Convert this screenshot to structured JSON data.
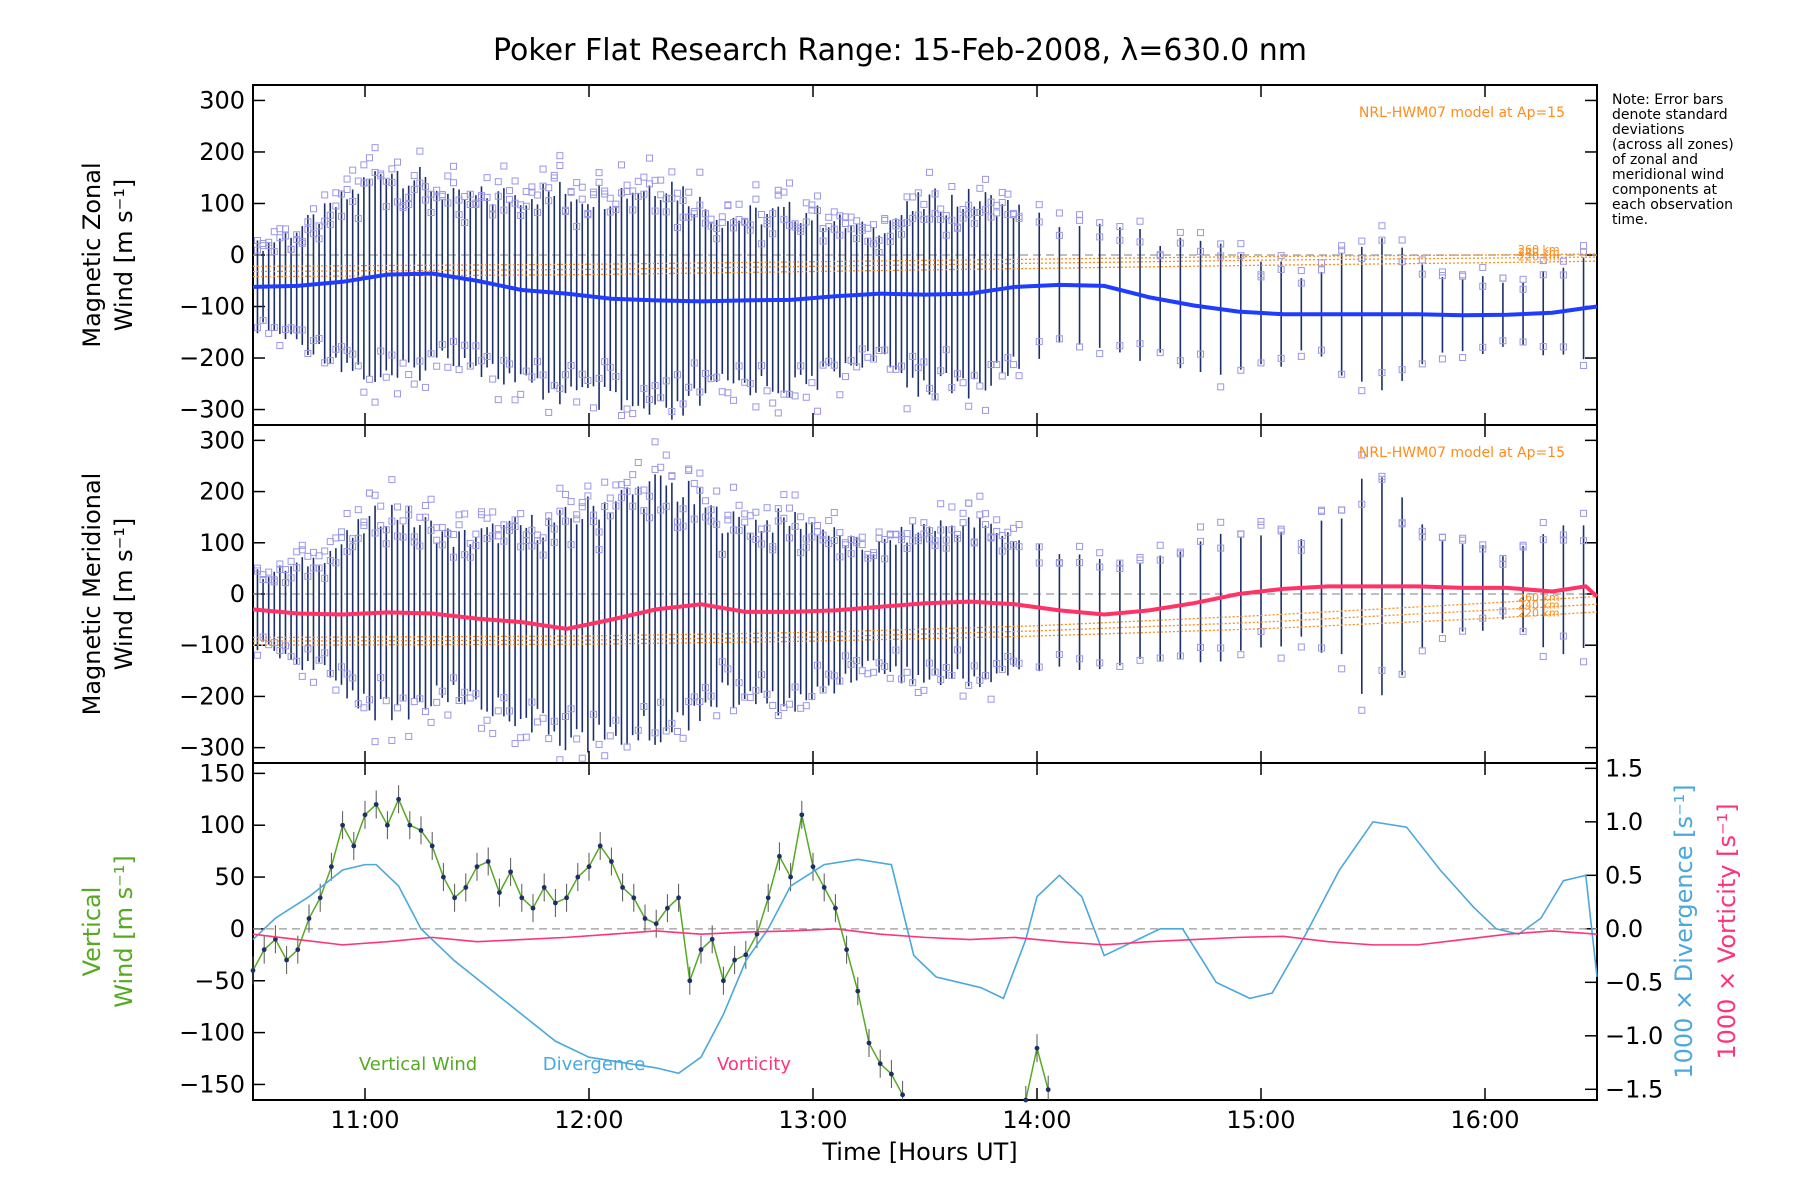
{
  "title": "Poker Flat Research Range: 15-Feb-2008, λ=630.0 nm",
  "note_lines": [
    "Note: Error bars",
    "denote standard",
    "deviations",
    "(across all zones)",
    "of zonal and",
    "meridional wind",
    "components at",
    "each observation",
    "time."
  ],
  "x_axis": {
    "label": "Time [Hours UT]",
    "range": [
      10.5,
      16.5
    ],
    "ticks": [
      11,
      12,
      13,
      14,
      15,
      16
    ],
    "tick_labels": [
      "11:00",
      "12:00",
      "13:00",
      "14:00",
      "15:00",
      "16:00"
    ]
  },
  "colors": {
    "zonal_mean": "#1f3cff",
    "zonal_mean_early": "#4aa8e6",
    "meridional_mean": "#ff3366",
    "model": "#ff8c1a",
    "scatter": "#9b97e8",
    "errorbar": "#1c2f6b",
    "vertical": "#55aa22",
    "divergence": "#4aa8dd",
    "vorticity": "#ff3377"
  },
  "chart_data": [
    {
      "type": "scatter",
      "panel": "zonal",
      "ylabel_line1": "Magnetic Zonal",
      "ylabel_line2": "Wind",
      "ylabel_units": "[m s⁻¹]",
      "ylim": [
        -330,
        330
      ],
      "yticks": [
        -300,
        -200,
        -100,
        0,
        100,
        200,
        300
      ],
      "model_label": "NRL-HWM07 model at Ap=15",
      "altitude_labels": [
        "260 km",
        "240 km",
        "220 km"
      ],
      "model_curves": [
        {
          "name": "260 km",
          "x": [
            10.5,
            12,
            13,
            14,
            15,
            16,
            16.5
          ],
          "y": [
            -22,
            -18,
            -13,
            -8,
            -3,
            0,
            2
          ]
        },
        {
          "name": "240 km",
          "x": [
            10.5,
            12,
            13,
            14,
            15,
            16,
            16.5
          ],
          "y": [
            -32,
            -28,
            -22,
            -16,
            -10,
            -6,
            -4
          ]
        },
        {
          "name": "220 km",
          "x": [
            10.5,
            12,
            13,
            14,
            15,
            16,
            16.5
          ],
          "y": [
            -42,
            -38,
            -32,
            -26,
            -20,
            -15,
            -12
          ]
        }
      ],
      "mean_wind": {
        "x": [
          10.5,
          10.7,
          10.9,
          11.1,
          11.3,
          11.5,
          11.7,
          11.9,
          12.1,
          12.3,
          12.5,
          12.7,
          12.9,
          13.1,
          13.3,
          13.5,
          13.7,
          13.9,
          14.1,
          14.3,
          14.5,
          14.7,
          14.9,
          15.1,
          15.3,
          15.5,
          15.7,
          15.9,
          16.1,
          16.3,
          16.5
        ],
        "y": [
          -62,
          -60,
          -52,
          -38,
          -36,
          -50,
          -68,
          -75,
          -85,
          -88,
          -90,
          -88,
          -87,
          -80,
          -75,
          -77,
          -75,
          -62,
          -58,
          -60,
          -82,
          -98,
          -110,
          -115,
          -115,
          -115,
          -115,
          -117,
          -116,
          -112,
          -100
        ]
      },
      "spread": {
        "x": [
          10.55,
          10.8,
          11.1,
          11.4,
          11.75,
          12.05,
          12.35,
          12.6,
          12.95,
          13.25,
          13.5,
          13.75,
          14.0,
          14.3,
          14.6,
          14.9,
          15.2,
          15.5,
          15.8,
          16.1,
          16.4
        ],
        "half": [
          80,
          130,
          210,
          150,
          190,
          200,
          230,
          160,
          170,
          120,
          180,
          180,
          130,
          110,
          120,
          110,
          80,
          140,
          80,
          60,
          100
        ]
      }
    },
    {
      "type": "scatter",
      "panel": "meridional",
      "ylabel_line1": "Magnetic Meridional",
      "ylabel_line2": "Wind",
      "ylabel_units": "[m s⁻¹]",
      "ylim": [
        -330,
        330
      ],
      "yticks": [
        -300,
        -200,
        -100,
        0,
        100,
        200,
        300
      ],
      "model_label": "NRL-HWM07 model at Ap=15",
      "altitude_labels": [
        "260 km",
        "240 km",
        "220 km"
      ],
      "model_curves": [
        {
          "name": "260 km",
          "x": [
            10.5,
            12,
            13,
            14,
            15,
            16,
            16.5
          ],
          "y": [
            -85,
            -82,
            -75,
            -62,
            -42,
            -18,
            -5
          ]
        },
        {
          "name": "240 km",
          "x": [
            10.5,
            12,
            13,
            14,
            15,
            16,
            16.5
          ],
          "y": [
            -92,
            -90,
            -84,
            -72,
            -55,
            -32,
            -20
          ]
        },
        {
          "name": "220 km",
          "x": [
            10.5,
            12,
            13,
            14,
            15,
            16,
            16.5
          ],
          "y": [
            -100,
            -98,
            -92,
            -82,
            -68,
            -48,
            -35
          ]
        }
      ],
      "mean_wind": {
        "x": [
          10.5,
          10.7,
          10.9,
          11.1,
          11.3,
          11.5,
          11.7,
          11.9,
          12.1,
          12.3,
          12.5,
          12.7,
          12.9,
          13.1,
          13.3,
          13.5,
          13.7,
          13.9,
          14.1,
          14.3,
          14.5,
          14.7,
          14.9,
          15.1,
          15.3,
          15.5,
          15.7,
          15.9,
          16.1,
          16.3,
          16.45,
          16.5
        ],
        "y": [
          -30,
          -38,
          -40,
          -36,
          -38,
          -48,
          -55,
          -68,
          -50,
          -30,
          -20,
          -35,
          -35,
          -32,
          -25,
          -18,
          -15,
          -20,
          -32,
          -40,
          -32,
          -18,
          0,
          10,
          15,
          15,
          15,
          12,
          12,
          5,
          15,
          -5
        ]
      },
      "spread": {
        "x": [
          10.55,
          10.8,
          11.1,
          11.4,
          11.75,
          12.05,
          12.35,
          12.6,
          12.95,
          13.25,
          13.5,
          13.75,
          14.0,
          14.3,
          14.6,
          14.9,
          15.2,
          15.5,
          15.8,
          16.1,
          16.4
        ],
        "half": [
          70,
          110,
          200,
          150,
          190,
          230,
          240,
          170,
          180,
          110,
          150,
          150,
          120,
          100,
          110,
          110,
          100,
          200,
          100,
          70,
          120
        ]
      }
    },
    {
      "type": "line",
      "panel": "vertical",
      "ylabel_line1": "Vertical",
      "ylabel_line2": "Wind",
      "ylabel_units": "[m s⁻¹]",
      "ylim": [
        -165,
        160
      ],
      "yticks": [
        -150,
        -100,
        -50,
        0,
        50,
        100,
        150
      ],
      "right_axis": {
        "ylim": [
          -1.6,
          1.55
        ],
        "yticks": [
          -1.5,
          -1.0,
          -0.5,
          0.0,
          0.5,
          1.0,
          1.5
        ],
        "tick_labels": [
          "-1.5",
          "-1.0",
          "-0.5",
          "0.0",
          "0.5",
          "1.0",
          "1.5"
        ],
        "label_divergence_prefix": "1000 × Divergence",
        "label_vorticity_prefix": "1000 × Vorticity",
        "units": "[s⁻¹]"
      },
      "legend": [
        "Vertical Wind",
        "Divergence",
        "Vorticity"
      ],
      "series": [
        {
          "name": "Vertical Wind",
          "axis": "left",
          "x": [
            10.5,
            10.55,
            10.6,
            10.65,
            10.7,
            10.75,
            10.8,
            10.85,
            10.9,
            10.95,
            11.0,
            11.05,
            11.1,
            11.15,
            11.2,
            11.25,
            11.3,
            11.35,
            11.4,
            11.45,
            11.5,
            11.55,
            11.6,
            11.65,
            11.7,
            11.75,
            11.8,
            11.85,
            11.9,
            11.95,
            12.0,
            12.05,
            12.1,
            12.15,
            12.2,
            12.25,
            12.3,
            12.35,
            12.4,
            12.45,
            12.5,
            12.55,
            12.6,
            12.65,
            12.7,
            12.75,
            12.8,
            12.85,
            12.9,
            12.95,
            13.0,
            13.05,
            13.1,
            13.15,
            13.2,
            13.25,
            13.3,
            13.35,
            13.4
          ],
          "y": [
            -40,
            -20,
            -10,
            -30,
            -20,
            10,
            30,
            60,
            100,
            80,
            110,
            120,
            100,
            125,
            100,
            95,
            80,
            50,
            30,
            40,
            60,
            65,
            35,
            55,
            30,
            20,
            40,
            25,
            30,
            50,
            60,
            80,
            65,
            40,
            30,
            10,
            5,
            20,
            30,
            -50,
            -20,
            -10,
            -50,
            -30,
            -25,
            -5,
            30,
            70,
            50,
            110,
            60,
            40,
            20,
            -20,
            -60,
            -110,
            -130,
            -140,
            -160
          ]
        },
        {
          "name": "Vertical Wind (late)",
          "axis": "left",
          "x": [
            13.95,
            14.0,
            14.05
          ],
          "y": [
            -165,
            -115,
            -155
          ]
        },
        {
          "name": "Divergence",
          "axis": "right",
          "x": [
            10.5,
            10.6,
            10.75,
            10.9,
            11.0,
            11.05,
            11.15,
            11.25,
            11.4,
            11.55,
            11.7,
            11.85,
            12.0,
            12.15,
            12.3,
            12.4,
            12.5,
            12.6,
            12.7,
            12.8,
            12.9,
            13.05,
            13.2,
            13.35,
            13.45,
            13.55,
            13.65,
            13.75,
            13.85,
            13.95,
            14.0,
            14.1,
            14.2,
            14.3,
            14.45,
            14.55,
            14.65,
            14.8,
            14.95,
            15.05,
            15.2,
            15.35,
            15.5,
            15.65,
            15.8,
            15.95,
            16.05,
            16.15,
            16.25,
            16.35,
            16.45,
            16.5
          ],
          "y": [
            -0.1,
            0.1,
            0.3,
            0.55,
            0.6,
            0.6,
            0.4,
            0.0,
            -0.3,
            -0.55,
            -0.8,
            -1.05,
            -1.2,
            -1.25,
            -1.3,
            -1.35,
            -1.2,
            -0.8,
            -0.3,
            0.0,
            0.4,
            0.6,
            0.65,
            0.6,
            -0.25,
            -0.45,
            -0.5,
            -0.55,
            -0.65,
            -0.1,
            0.3,
            0.5,
            0.3,
            -0.25,
            -0.1,
            0.0,
            0.0,
            -0.5,
            -0.65,
            -0.6,
            -0.05,
            0.55,
            1.0,
            0.95,
            0.55,
            0.2,
            0.0,
            -0.05,
            0.1,
            0.45,
            0.5,
            -0.45
          ]
        },
        {
          "name": "Vorticity",
          "axis": "right",
          "x": [
            10.5,
            10.7,
            10.9,
            11.1,
            11.3,
            11.5,
            11.7,
            11.9,
            12.1,
            12.3,
            12.5,
            12.7,
            12.9,
            13.1,
            13.3,
            13.5,
            13.7,
            13.9,
            14.1,
            14.3,
            14.5,
            14.7,
            14.9,
            15.1,
            15.3,
            15.5,
            15.7,
            15.9,
            16.1,
            16.3,
            16.5
          ],
          "y": [
            -0.05,
            -0.1,
            -0.15,
            -0.12,
            -0.08,
            -0.12,
            -0.1,
            -0.08,
            -0.05,
            -0.02,
            -0.05,
            -0.03,
            -0.02,
            0.0,
            -0.05,
            -0.08,
            -0.1,
            -0.08,
            -0.12,
            -0.15,
            -0.12,
            -0.1,
            -0.08,
            -0.07,
            -0.12,
            -0.15,
            -0.15,
            -0.1,
            -0.05,
            -0.02,
            -0.05
          ]
        }
      ]
    }
  ]
}
